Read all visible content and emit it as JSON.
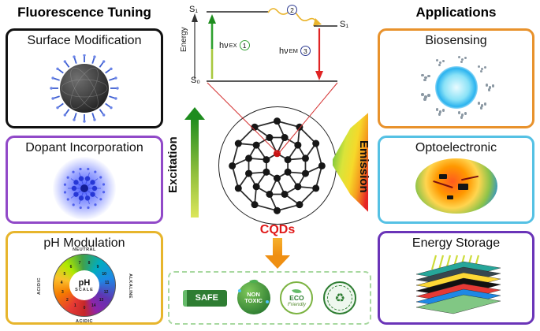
{
  "headers": {
    "left": "Fluorescence Tuning",
    "right": "Applications"
  },
  "panels": {
    "surface": {
      "title": "Surface Modification"
    },
    "dopant": {
      "title": "Dopant Incorporation"
    },
    "ph": {
      "title": "pH Modulation"
    },
    "biosensing": {
      "title": "Biosensing"
    },
    "optoelectronic": {
      "title": "Optoelectronic"
    },
    "energy": {
      "title": "Energy Storage"
    }
  },
  "jablonski": {
    "s1_left": "S₁",
    "s1_right": "S₁",
    "s0": "S₀",
    "axis": "Energy",
    "hv": "hν",
    "ex_sub": "EX",
    "em_sub": "EM",
    "step1": "1",
    "step2": "2",
    "step3": "3"
  },
  "center": {
    "excitation": "Excitation",
    "emission": "Emission",
    "cqds": "CQDs"
  },
  "ph_wheel": {
    "ph": "pH",
    "scale": "SCALE",
    "neutral": "NEUTRAL",
    "acidic_left": "ACIDIC",
    "alkaline": "ALKALINE",
    "acidic_bottom": "ACIDIC",
    "numbers": [
      "0",
      "1",
      "2",
      "3",
      "4",
      "5",
      "6",
      "7",
      "8",
      "9",
      "10",
      "11",
      "12",
      "13",
      "14"
    ]
  },
  "badges": {
    "safe": "SAFE",
    "non": "NON",
    "toxic": "TOXIC",
    "eco": "ECO",
    "friendly": "Friendly",
    "stamp_icon": "♻"
  },
  "colors": {
    "surface_border": "#111111",
    "dopant_border": "#9149c8",
    "ph_border": "#e7b52c",
    "bio_border": "#e8922c",
    "opto_border": "#55c1e4",
    "energy_border": "#6a34b8",
    "cqds_red": "#e01818",
    "arrow_orange": "#ef8f12",
    "excitation_green": "#2fa12f",
    "emission_red": "#e62525",
    "safe_green": "#2e7d32"
  }
}
